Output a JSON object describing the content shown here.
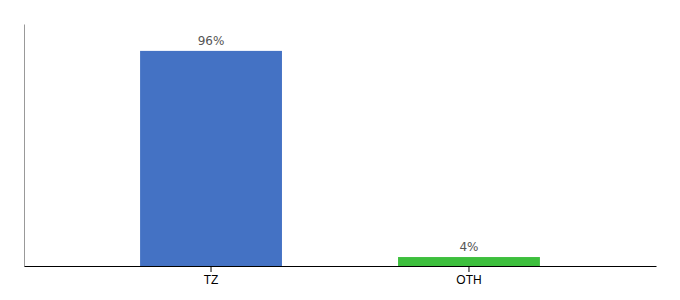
{
  "chart_data": {
    "type": "bar",
    "categories": [
      "TZ",
      "OTH"
    ],
    "values": [
      96,
      4
    ],
    "value_labels": [
      "96%",
      "4%"
    ],
    "colors": [
      "#4472C4",
      "#3DBF3D"
    ],
    "ylim": [
      0,
      108
    ],
    "data_labels": true,
    "tick_labels": "x"
  }
}
